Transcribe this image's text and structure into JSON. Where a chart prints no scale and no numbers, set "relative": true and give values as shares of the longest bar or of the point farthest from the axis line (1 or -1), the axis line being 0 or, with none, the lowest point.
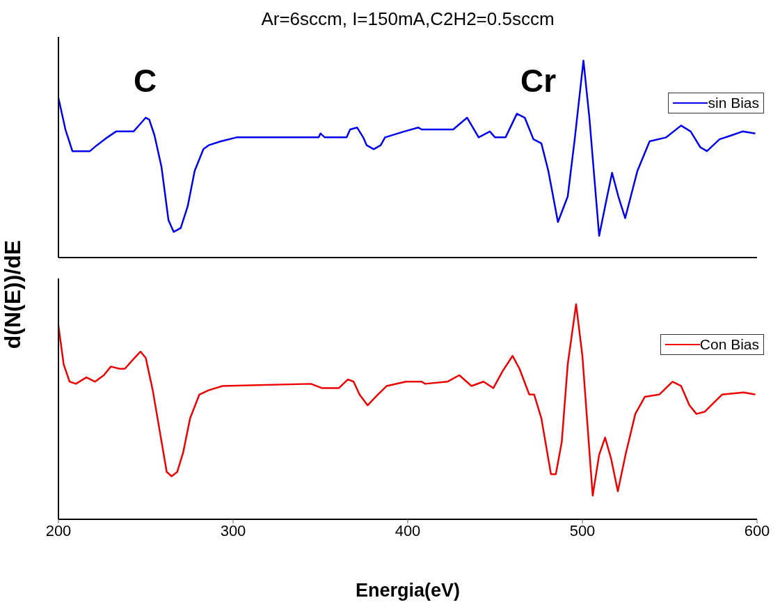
{
  "chart_data": [
    {
      "type": "line",
      "title": "Ar=6sccm, I=150mA,C2H2=0.5sccm",
      "ylabel": "d(N(E))/dE",
      "relative": true,
      "xlim": [
        200,
        600
      ],
      "xticks": [
        200,
        300,
        400,
        500,
        600
      ],
      "tick_labels": false,
      "legend": "top right",
      "grid": false,
      "annotations": [
        "C",
        "Cr"
      ],
      "series": [
        {
          "name": "sin Bias",
          "color": "#0000ee",
          "x": [
            200,
            204,
            208,
            218,
            222,
            228,
            233,
            243,
            247,
            250,
            252,
            255,
            259,
            263,
            266,
            270,
            274,
            278,
            283,
            286,
            293,
            302,
            349,
            350,
            352.5,
            365,
            367,
            371,
            374.5,
            376.5,
            380.5,
            384.5,
            387,
            398,
            406,
            408,
            426,
            434,
            440.6,
            447,
            450,
            456,
            462.5,
            467,
            472,
            476.5,
            480.5,
            486,
            491.6,
            495.6,
            500.6,
            504,
            509.6,
            513.7,
            517,
            520.6,
            524.5,
            531.5,
            538.5,
            548,
            556.5,
            562,
            567.5,
            571.3,
            578.5,
            585.3,
            591.7,
            599
          ],
          "values": [
            0.81,
            0.65,
            0.54,
            0.54,
            0.57,
            0.61,
            0.64,
            0.64,
            0.68,
            0.71,
            0.7,
            0.62,
            0.46,
            0.19,
            0.13,
            0.15,
            0.26,
            0.44,
            0.55,
            0.57,
            0.59,
            0.61,
            0.61,
            0.63,
            0.61,
            0.61,
            0.65,
            0.66,
            0.61,
            0.57,
            0.55,
            0.57,
            0.61,
            0.64,
            0.66,
            0.65,
            0.65,
            0.71,
            0.61,
            0.64,
            0.61,
            0.61,
            0.73,
            0.71,
            0.6,
            0.58,
            0.44,
            0.18,
            0.31,
            0.6,
            1.0,
            0.71,
            0.11,
            0.29,
            0.43,
            0.31,
            0.2,
            0.44,
            0.59,
            0.61,
            0.67,
            0.64,
            0.56,
            0.54,
            0.6,
            0.62,
            0.64,
            0.63
          ]
        }
      ]
    },
    {
      "type": "line",
      "xlabel": "Energia(eV)",
      "relative": true,
      "xlim": [
        200,
        600
      ],
      "xticks": [
        200,
        300,
        400,
        500,
        600
      ],
      "tick_labels": "x",
      "legend": "top right",
      "grid": false,
      "series": [
        {
          "name": "Con Bias",
          "color": "#ee0000",
          "x": [
            200,
            203,
            206.4,
            210,
            216,
            221,
            226,
            230,
            235,
            238,
            243.5,
            247,
            250,
            254,
            258,
            262,
            264.8,
            268,
            271.4,
            275.4,
            280.7,
            286,
            294,
            344.5,
            351,
            360.5,
            365.7,
            369,
            372.4,
            377,
            381.7,
            388,
            399,
            408,
            410,
            422.7,
            429.5,
            436.5,
            443.4,
            449,
            454.4,
            460,
            464,
            469.6,
            472.4,
            476.5,
            482,
            484.8,
            488.2,
            491.6,
            496.4,
            500,
            505.9,
            509.6,
            513,
            516.5,
            520.3,
            524.7,
            530.3,
            535.8,
            544,
            551.6,
            556.5,
            561.3,
            565.3,
            570,
            580,
            592.3,
            599
          ],
          "values": [
            0.9,
            0.72,
            0.64,
            0.63,
            0.66,
            0.64,
            0.67,
            0.71,
            0.7,
            0.7,
            0.75,
            0.78,
            0.75,
            0.6,
            0.41,
            0.22,
            0.2,
            0.22,
            0.31,
            0.47,
            0.58,
            0.6,
            0.62,
            0.63,
            0.61,
            0.61,
            0.65,
            0.64,
            0.58,
            0.53,
            0.57,
            0.62,
            0.64,
            0.64,
            0.63,
            0.64,
            0.67,
            0.62,
            0.64,
            0.61,
            0.69,
            0.76,
            0.7,
            0.58,
            0.58,
            0.47,
            0.21,
            0.21,
            0.36,
            0.72,
            1.0,
            0.76,
            0.11,
            0.3,
            0.38,
            0.28,
            0.13,
            0.3,
            0.49,
            0.57,
            0.58,
            0.64,
            0.62,
            0.53,
            0.49,
            0.5,
            0.58,
            0.59,
            0.58
          ]
        }
      ]
    }
  ]
}
